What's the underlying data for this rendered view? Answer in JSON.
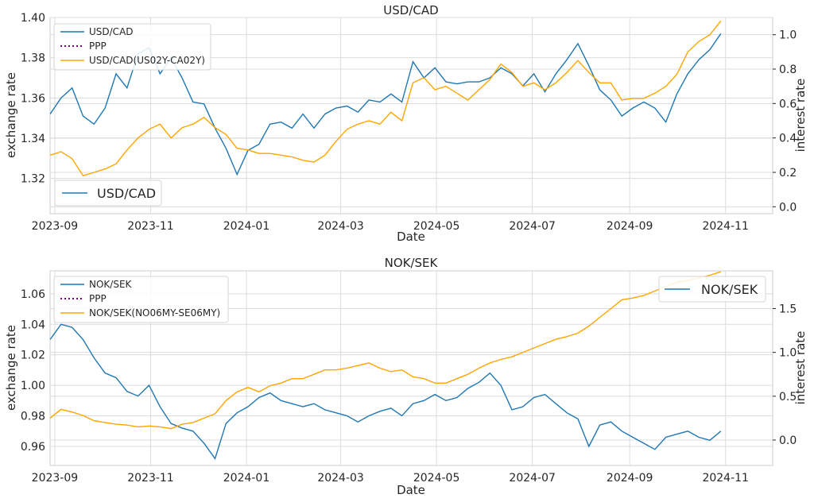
{
  "colors": {
    "pair": "#1f77b4",
    "ppp": "#800080",
    "rate": "#ffa500",
    "grid": "#dcdcdc",
    "axis": "#cccccc",
    "text": "#262626"
  },
  "chart_data": [
    {
      "type": "line",
      "title": "USD/CAD",
      "xlabel": "Date",
      "ylabel": "exchange rate",
      "y2label": "interest rate",
      "x_ticks": [
        "2023-09",
        "2023-11",
        "2024-01",
        "2024-03",
        "2024-05",
        "2024-07",
        "2024-09",
        "2024-11"
      ],
      "y_ticks": [
        "1.32",
        "1.34",
        "1.36",
        "1.38",
        "1.40"
      ],
      "y2_ticks": [
        "0.0",
        "0.2",
        "0.4",
        "0.6",
        "0.8",
        "1.0"
      ],
      "xlim": [
        "2023-08-29",
        "2024-12-01"
      ],
      "ylim": [
        1.3025,
        1.4
      ],
      "y2lim": [
        -0.04,
        1.1
      ],
      "grid": true,
      "legend_upper": {
        "placement": "upper-left",
        "entries": [
          "USD/CAD",
          "PPP",
          "USD/CAD(US02Y-CA02Y)"
        ]
      },
      "legend_lower": {
        "placement": "lower-left",
        "entries": [
          "USD/CAD"
        ]
      },
      "series": [
        {
          "name": "USD/CAD",
          "axis": "left",
          "x": [
            "2023-08-29",
            "2023-09-05",
            "2023-09-12",
            "2023-09-19",
            "2023-09-26",
            "2023-10-03",
            "2023-10-10",
            "2023-10-17",
            "2023-10-24",
            "2023-10-31",
            "2023-11-07",
            "2023-11-14",
            "2023-11-21",
            "2023-11-28",
            "2023-12-05",
            "2023-12-12",
            "2023-12-19",
            "2023-12-26",
            "2024-01-02",
            "2024-01-09",
            "2024-01-16",
            "2024-01-23",
            "2024-01-30",
            "2024-02-06",
            "2024-02-13",
            "2024-02-20",
            "2024-02-27",
            "2024-03-05",
            "2024-03-12",
            "2024-03-19",
            "2024-03-26",
            "2024-04-02",
            "2024-04-09",
            "2024-04-16",
            "2024-04-23",
            "2024-04-30",
            "2024-05-07",
            "2024-05-14",
            "2024-05-21",
            "2024-05-28",
            "2024-06-04",
            "2024-06-11",
            "2024-06-18",
            "2024-06-25",
            "2024-07-02",
            "2024-07-09",
            "2024-07-16",
            "2024-07-23",
            "2024-07-30",
            "2024-08-06",
            "2024-08-13",
            "2024-08-20",
            "2024-08-27",
            "2024-09-03",
            "2024-09-10",
            "2024-09-17",
            "2024-09-24",
            "2024-10-01",
            "2024-10-08",
            "2024-10-15",
            "2024-10-22",
            "2024-10-29"
          ],
          "values": [
            1.352,
            1.36,
            1.365,
            1.351,
            1.347,
            1.355,
            1.372,
            1.365,
            1.382,
            1.385,
            1.372,
            1.38,
            1.37,
            1.358,
            1.357,
            1.345,
            1.335,
            1.322,
            1.334,
            1.337,
            1.347,
            1.348,
            1.345,
            1.352,
            1.345,
            1.352,
            1.355,
            1.356,
            1.353,
            1.359,
            1.358,
            1.362,
            1.358,
            1.378,
            1.37,
            1.375,
            1.368,
            1.367,
            1.368,
            1.368,
            1.37,
            1.375,
            1.372,
            1.366,
            1.372,
            1.363,
            1.372,
            1.379,
            1.387,
            1.376,
            1.364,
            1.359,
            1.351,
            1.355,
            1.358,
            1.355,
            1.348,
            1.362,
            1.372,
            1.379,
            1.384,
            1.392
          ]
        },
        {
          "name": "PPP",
          "axis": "left",
          "x": [],
          "values": []
        },
        {
          "name": "USD/CAD(US02Y-CA02Y)",
          "axis": "right",
          "x": [
            "2023-08-29",
            "2023-09-05",
            "2023-09-12",
            "2023-09-19",
            "2023-09-26",
            "2023-10-03",
            "2023-10-10",
            "2023-10-17",
            "2023-10-24",
            "2023-10-31",
            "2023-11-07",
            "2023-11-14",
            "2023-11-21",
            "2023-11-28",
            "2023-12-05",
            "2023-12-12",
            "2023-12-19",
            "2023-12-26",
            "2024-01-02",
            "2024-01-09",
            "2024-01-16",
            "2024-01-23",
            "2024-01-30",
            "2024-02-06",
            "2024-02-13",
            "2024-02-20",
            "2024-02-27",
            "2024-03-05",
            "2024-03-12",
            "2024-03-19",
            "2024-03-26",
            "2024-04-02",
            "2024-04-09",
            "2024-04-16",
            "2024-04-23",
            "2024-04-30",
            "2024-05-07",
            "2024-05-14",
            "2024-05-21",
            "2024-05-28",
            "2024-06-04",
            "2024-06-11",
            "2024-06-18",
            "2024-06-25",
            "2024-07-02",
            "2024-07-09",
            "2024-07-16",
            "2024-07-23",
            "2024-07-30",
            "2024-08-06",
            "2024-08-13",
            "2024-08-20",
            "2024-08-27",
            "2024-09-03",
            "2024-09-10",
            "2024-09-17",
            "2024-09-24",
            "2024-10-01",
            "2024-10-08",
            "2024-10-15",
            "2024-10-22",
            "2024-10-29"
          ],
          "values": [
            0.3,
            0.32,
            0.28,
            0.18,
            0.2,
            0.22,
            0.25,
            0.33,
            0.4,
            0.45,
            0.48,
            0.4,
            0.46,
            0.48,
            0.52,
            0.46,
            0.42,
            0.34,
            0.33,
            0.31,
            0.31,
            0.3,
            0.29,
            0.27,
            0.26,
            0.3,
            0.38,
            0.45,
            0.48,
            0.5,
            0.48,
            0.55,
            0.5,
            0.72,
            0.75,
            0.68,
            0.7,
            0.66,
            0.62,
            0.68,
            0.74,
            0.83,
            0.78,
            0.7,
            0.72,
            0.68,
            0.72,
            0.78,
            0.85,
            0.78,
            0.72,
            0.72,
            0.62,
            0.63,
            0.63,
            0.66,
            0.7,
            0.77,
            0.9,
            0.96,
            1.0,
            1.08
          ]
        }
      ]
    },
    {
      "type": "line",
      "title": "NOK/SEK",
      "xlabel": "Date",
      "ylabel": "exchange rate",
      "y2label": "interest rate",
      "x_ticks": [
        "2023-09",
        "2023-11",
        "2024-01",
        "2024-03",
        "2024-05",
        "2024-07",
        "2024-09",
        "2024-11"
      ],
      "y_ticks": [
        "0.96",
        "0.98",
        "1.00",
        "1.02",
        "1.04",
        "1.06"
      ],
      "y2_ticks": [
        "0.0",
        "0.5",
        "1.0",
        "1.5"
      ],
      "xlim": [
        "2023-08-29",
        "2024-12-01"
      ],
      "ylim": [
        0.9475,
        1.075
      ],
      "y2lim": [
        -0.29,
        1.93
      ],
      "grid": true,
      "legend_upper": {
        "placement": "upper-left",
        "entries": [
          "NOK/SEK",
          "PPP",
          "NOK/SEK(NO06MY-SE06MY)"
        ]
      },
      "legend_lower": {
        "placement": "upper-right",
        "entries": [
          "NOK/SEK"
        ]
      },
      "series": [
        {
          "name": "NOK/SEK",
          "axis": "left",
          "x": [
            "2023-08-29",
            "2023-09-05",
            "2023-09-12",
            "2023-09-19",
            "2023-09-26",
            "2023-10-03",
            "2023-10-10",
            "2023-10-17",
            "2023-10-24",
            "2023-10-31",
            "2023-11-07",
            "2023-11-14",
            "2023-11-21",
            "2023-11-28",
            "2023-12-05",
            "2023-12-12",
            "2023-12-19",
            "2023-12-26",
            "2024-01-02",
            "2024-01-09",
            "2024-01-16",
            "2024-01-23",
            "2024-01-30",
            "2024-02-06",
            "2024-02-13",
            "2024-02-20",
            "2024-02-27",
            "2024-03-05",
            "2024-03-12",
            "2024-03-19",
            "2024-03-26",
            "2024-04-02",
            "2024-04-09",
            "2024-04-16",
            "2024-04-23",
            "2024-04-30",
            "2024-05-07",
            "2024-05-14",
            "2024-05-21",
            "2024-05-28",
            "2024-06-04",
            "2024-06-11",
            "2024-06-18",
            "2024-06-25",
            "2024-07-02",
            "2024-07-09",
            "2024-07-16",
            "2024-07-23",
            "2024-07-30",
            "2024-08-06",
            "2024-08-13",
            "2024-08-20",
            "2024-08-27",
            "2024-09-03",
            "2024-09-10",
            "2024-09-17",
            "2024-09-24",
            "2024-10-01",
            "2024-10-08",
            "2024-10-15",
            "2024-10-22",
            "2024-10-29"
          ],
          "values": [
            1.03,
            1.04,
            1.038,
            1.03,
            1.018,
            1.008,
            1.005,
            0.996,
            0.993,
            1.0,
            0.986,
            0.975,
            0.972,
            0.97,
            0.962,
            0.952,
            0.975,
            0.982,
            0.986,
            0.992,
            0.995,
            0.99,
            0.988,
            0.986,
            0.988,
            0.984,
            0.982,
            0.98,
            0.976,
            0.98,
            0.983,
            0.985,
            0.98,
            0.988,
            0.99,
            0.994,
            0.99,
            0.992,
            0.998,
            1.002,
            1.008,
            1.0,
            0.984,
            0.986,
            0.992,
            0.994,
            0.988,
            0.982,
            0.978,
            0.96,
            0.974,
            0.976,
            0.97,
            0.966,
            0.962,
            0.958,
            0.966,
            0.968,
            0.97,
            0.966,
            0.964,
            0.97
          ]
        },
        {
          "name": "PPP",
          "axis": "left",
          "x": [],
          "values": []
        },
        {
          "name": "NOK/SEK(NO06MY-SE06MY)",
          "axis": "right",
          "x": [
            "2023-08-29",
            "2023-09-05",
            "2023-09-12",
            "2023-09-19",
            "2023-09-26",
            "2023-10-03",
            "2023-10-10",
            "2023-10-17",
            "2023-10-24",
            "2023-10-31",
            "2023-11-07",
            "2023-11-14",
            "2023-11-21",
            "2023-11-28",
            "2023-12-05",
            "2023-12-12",
            "2023-12-19",
            "2023-12-26",
            "2024-01-02",
            "2024-01-09",
            "2024-01-16",
            "2024-01-23",
            "2024-01-30",
            "2024-02-06",
            "2024-02-13",
            "2024-02-20",
            "2024-02-27",
            "2024-03-05",
            "2024-03-12",
            "2024-03-19",
            "2024-03-26",
            "2024-04-02",
            "2024-04-09",
            "2024-04-16",
            "2024-04-23",
            "2024-04-30",
            "2024-05-07",
            "2024-05-14",
            "2024-05-21",
            "2024-05-28",
            "2024-06-04",
            "2024-06-11",
            "2024-06-18",
            "2024-06-25",
            "2024-07-02",
            "2024-07-09",
            "2024-07-16",
            "2024-07-23",
            "2024-07-30",
            "2024-08-06",
            "2024-08-13",
            "2024-08-20",
            "2024-08-27",
            "2024-09-03",
            "2024-09-10",
            "2024-09-17",
            "2024-09-24",
            "2024-10-01",
            "2024-10-08",
            "2024-10-15",
            "2024-10-22",
            "2024-10-29"
          ],
          "values": [
            0.25,
            0.35,
            0.32,
            0.28,
            0.22,
            0.2,
            0.18,
            0.17,
            0.15,
            0.16,
            0.15,
            0.13,
            0.18,
            0.2,
            0.25,
            0.3,
            0.45,
            0.55,
            0.6,
            0.55,
            0.62,
            0.65,
            0.7,
            0.7,
            0.75,
            0.8,
            0.8,
            0.82,
            0.85,
            0.88,
            0.82,
            0.78,
            0.8,
            0.72,
            0.7,
            0.65,
            0.65,
            0.7,
            0.75,
            0.82,
            0.88,
            0.92,
            0.95,
            1.0,
            1.05,
            1.1,
            1.15,
            1.18,
            1.22,
            1.3,
            1.4,
            1.5,
            1.6,
            1.62,
            1.65,
            1.7,
            1.75,
            1.8,
            1.82,
            1.85,
            1.88,
            1.92
          ]
        }
      ]
    }
  ]
}
